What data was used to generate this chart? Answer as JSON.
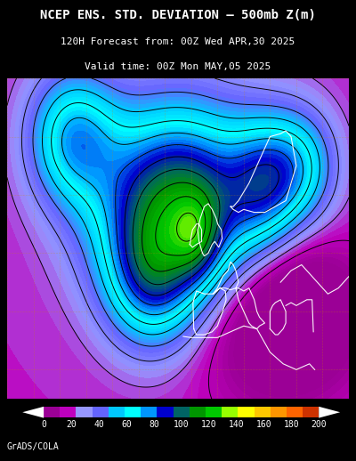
{
  "title_line1": "NCEP ENS. STD. DEVIATION – 500mb Z(m)",
  "title_line2": "120H Forecast from: 00Z Wed APR,30 2025",
  "title_line3": "Valid time: 00Z Mon MAY,05 2025",
  "bg_color": "#000000",
  "colorbar_colors": [
    "#9b0096",
    "#be00be",
    "#9696ff",
    "#6464ff",
    "#00c8ff",
    "#00ffffff",
    "#0096ff",
    "#0000cd",
    "#006464",
    "#009600",
    "#00c800",
    "#96ff00",
    "#ffff00",
    "#ffc800",
    "#ff9600",
    "#ff6400",
    "#cd3200"
  ],
  "colorbar_ticks": [
    0,
    20,
    40,
    60,
    80,
    100,
    120,
    140,
    160,
    180,
    200
  ],
  "credit": "GrADS/COLA",
  "fig_width": 4.0,
  "fig_height": 5.18,
  "dpi": 100
}
